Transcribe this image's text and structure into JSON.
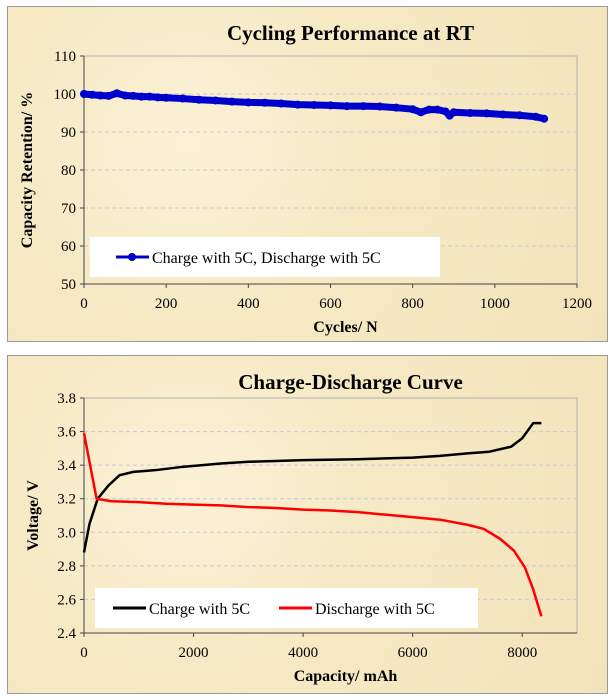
{
  "chart_data": [
    {
      "type": "line",
      "title": "Cycling Performance at RT",
      "xlabel": "Cycles/ N",
      "ylabel": "Capacity Retention/ %",
      "xlim": [
        0,
        1200
      ],
      "ylim": [
        50,
        110
      ],
      "xticks": [
        "0",
        "200",
        "400",
        "600",
        "800",
        "1000",
        "1200"
      ],
      "yticks": [
        "50",
        "60",
        "70",
        "80",
        "90",
        "100",
        "110"
      ],
      "grid": "horizontal dashed",
      "legend": "bottom-left",
      "series": [
        {
          "name": "Charge with 5C,  Discharge with 5C",
          "color": "#0000cc",
          "marker": "circle",
          "x": [
            0,
            20,
            40,
            60,
            80,
            100,
            120,
            140,
            160,
            180,
            200,
            240,
            280,
            320,
            360,
            400,
            440,
            480,
            520,
            560,
            600,
            640,
            680,
            720,
            760,
            800,
            820,
            840,
            860,
            880,
            890,
            900,
            940,
            980,
            1020,
            1060,
            1100,
            1120
          ],
          "y": [
            100,
            99.8,
            99.6,
            99.5,
            100.2,
            99.6,
            99.5,
            99.3,
            99.3,
            99.1,
            99,
            98.8,
            98.5,
            98.3,
            98,
            97.8,
            97.7,
            97.5,
            97.2,
            97.1,
            97,
            96.8,
            96.8,
            96.7,
            96.4,
            96,
            95.2,
            95.9,
            95.9,
            95.4,
            94.3,
            95.2,
            95,
            94.9,
            94.6,
            94.4,
            94,
            93.5
          ]
        }
      ]
    },
    {
      "type": "line",
      "title": "Charge-Discharge Curve",
      "xlabel": "Capacity/ mAh",
      "ylabel": "Voltage/ V",
      "xlim": [
        0,
        9000
      ],
      "ylim": [
        2.4,
        3.8
      ],
      "xticks": [
        "0",
        "2000",
        "4000",
        "6000",
        "8000"
      ],
      "yticks": [
        "2.4",
        "2.6",
        "2.8",
        "3.0",
        "3.2",
        "3.4",
        "3.6",
        "3.8"
      ],
      "grid": "horizontal dashed",
      "legend": "bottom-left",
      "series": [
        {
          "name": "Charge with 5C",
          "color": "#000000",
          "x": [
            0,
            100,
            250,
            450,
            650,
            900,
            1300,
            1800,
            2500,
            3000,
            3500,
            4000,
            5000,
            6000,
            6500,
            7000,
            7400,
            7800,
            8000,
            8200,
            8350
          ],
          "y": [
            2.88,
            3.05,
            3.2,
            3.28,
            3.34,
            3.36,
            3.37,
            3.39,
            3.41,
            3.42,
            3.425,
            3.43,
            3.435,
            3.445,
            3.455,
            3.47,
            3.48,
            3.51,
            3.56,
            3.65,
            3.65
          ]
        },
        {
          "name": "Discharge with 5C",
          "color": "#ff0000",
          "x": [
            0,
            230,
            500,
            1000,
            1500,
            2000,
            2500,
            3000,
            3500,
            4000,
            4500,
            5000,
            5500,
            6000,
            6500,
            7000,
            7300,
            7600,
            7850,
            8050,
            8200,
            8350
          ],
          "y": [
            3.59,
            3.2,
            3.185,
            3.18,
            3.17,
            3.165,
            3.16,
            3.15,
            3.145,
            3.135,
            3.13,
            3.12,
            3.105,
            3.09,
            3.075,
            3.045,
            3.02,
            2.96,
            2.89,
            2.79,
            2.66,
            2.5
          ]
        }
      ]
    }
  ]
}
